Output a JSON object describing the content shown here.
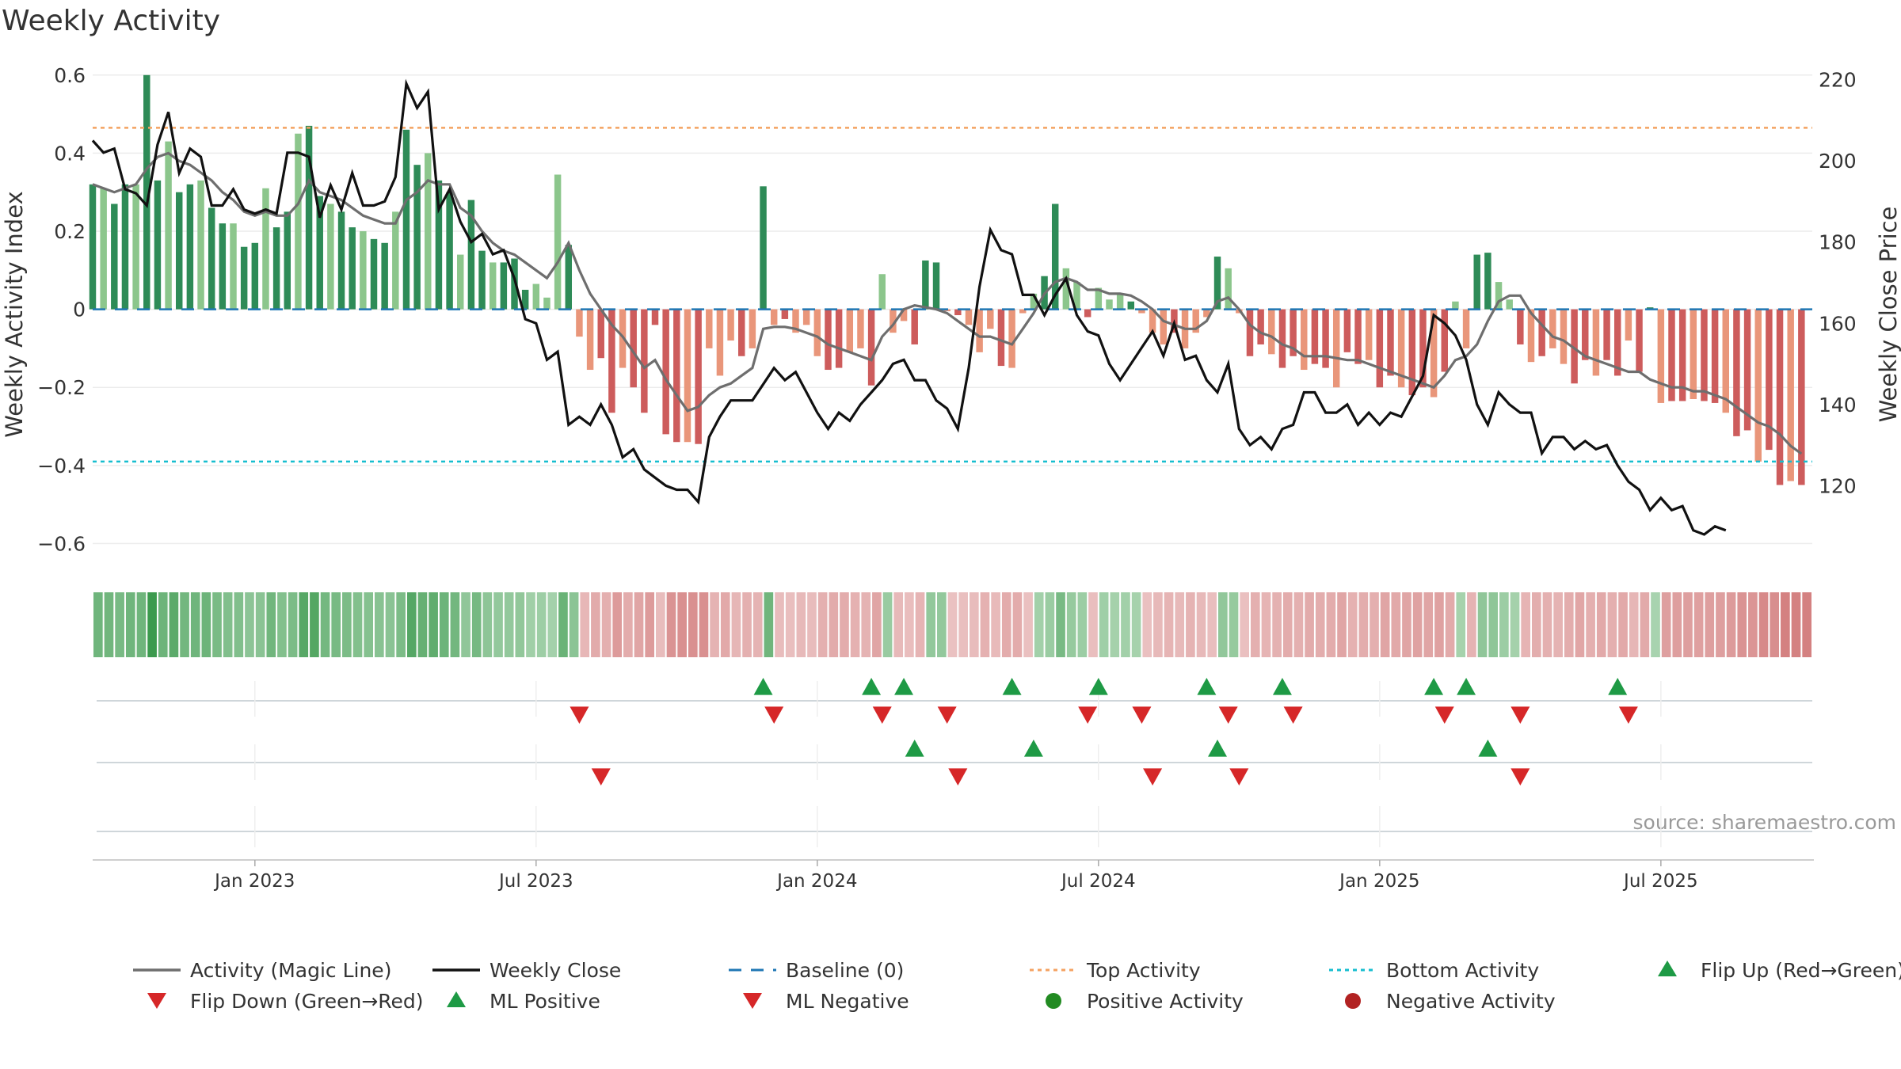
{
  "chart_data": {
    "type": "bar",
    "title": "Weekly Activity",
    "ylabel": "Weekly Activity Index",
    "y2label": "Weekly Close Price",
    "ylim": [
      -0.66,
      0.63
    ],
    "y2lim": [
      100,
      224
    ],
    "yticks": [
      -0.6,
      -0.4,
      -0.2,
      0,
      0.2,
      0.4,
      0.6
    ],
    "y2ticks": [
      120,
      140,
      160,
      180,
      200,
      220
    ],
    "xlim_weeks": [
      0,
      159
    ],
    "xticks": [
      {
        "label": "Jan 2023",
        "week": 15
      },
      {
        "label": "Jul 2023",
        "week": 41
      },
      {
        "label": "Jan 2024",
        "week": 67
      },
      {
        "label": "Jul 2024",
        "week": 93
      },
      {
        "label": "Jan 2025",
        "week": 119
      },
      {
        "label": "Jul 2025",
        "week": 145
      }
    ],
    "top_activity": 0.465,
    "bottom_activity": -0.39,
    "activity_index": [
      0.32,
      0.31,
      0.27,
      0.32,
      0.32,
      0.6,
      0.33,
      0.43,
      0.3,
      0.32,
      0.33,
      0.26,
      0.22,
      0.22,
      0.16,
      0.17,
      0.31,
      0.21,
      0.25,
      0.45,
      0.47,
      0.29,
      0.27,
      0.25,
      0.21,
      0.2,
      0.18,
      0.17,
      0.25,
      0.46,
      0.37,
      0.4,
      0.33,
      0.3,
      0.14,
      0.28,
      0.15,
      0.12,
      0.12,
      0.13,
      0.05,
      0.065,
      0.03,
      0.345,
      0.165,
      -0.07,
      -0.155,
      -0.125,
      -0.265,
      -0.15,
      -0.2,
      -0.265,
      -0.04,
      -0.32,
      -0.34,
      -0.34,
      -0.345,
      -0.1,
      -0.17,
      -0.08,
      -0.12,
      -0.1,
      0.315,
      -0.04,
      -0.025,
      -0.06,
      -0.04,
      -0.12,
      -0.155,
      -0.15,
      -0.11,
      -0.1,
      -0.195,
      0.09,
      -0.06,
      -0.03,
      -0.09,
      0.125,
      0.12,
      -0.005,
      -0.015,
      -0.04,
      -0.11,
      -0.05,
      -0.145,
      -0.15,
      -0.01,
      0.04,
      0.085,
      0.27,
      0.105,
      0.07,
      -0.02,
      0.055,
      0.025,
      0.04,
      0.02,
      -0.01,
      -0.06,
      -0.09,
      -0.06,
      -0.1,
      -0.06,
      -0.02,
      0.135,
      0.105,
      -0.01,
      -0.12,
      -0.09,
      -0.115,
      -0.15,
      -0.12,
      -0.155,
      -0.14,
      -0.15,
      -0.2,
      -0.11,
      -0.14,
      -0.13,
      -0.2,
      -0.17,
      -0.2,
      -0.22,
      -0.2,
      -0.225,
      -0.16,
      0.02,
      -0.1,
      0.14,
      0.145,
      0.07,
      0.025,
      -0.09,
      -0.135,
      -0.12,
      -0.1,
      -0.14,
      -0.19,
      -0.13,
      -0.17,
      -0.13,
      -0.17,
      -0.08,
      -0.16,
      0.005,
      -0.24,
      -0.235,
      -0.235,
      -0.23,
      -0.235,
      -0.24,
      -0.265,
      -0.325,
      -0.31,
      -0.39,
      -0.36,
      -0.45,
      -0.44,
      -0.45
    ],
    "magic_line": [
      0.32,
      0.31,
      0.3,
      0.31,
      0.32,
      0.36,
      0.39,
      0.4,
      0.38,
      0.37,
      0.35,
      0.33,
      0.3,
      0.28,
      0.25,
      0.24,
      0.25,
      0.24,
      0.24,
      0.27,
      0.33,
      0.3,
      0.29,
      0.28,
      0.26,
      0.24,
      0.23,
      0.22,
      0.22,
      0.28,
      0.3,
      0.33,
      0.32,
      0.32,
      0.26,
      0.24,
      0.2,
      0.17,
      0.15,
      0.14,
      0.12,
      0.1,
      0.08,
      0.12,
      0.17,
      0.1,
      0.04,
      0.0,
      -0.04,
      -0.07,
      -0.11,
      -0.15,
      -0.13,
      -0.18,
      -0.22,
      -0.26,
      -0.25,
      -0.22,
      -0.2,
      -0.19,
      -0.17,
      -0.15,
      -0.05,
      -0.045,
      -0.045,
      -0.05,
      -0.06,
      -0.07,
      -0.09,
      -0.1,
      -0.11,
      -0.12,
      -0.13,
      -0.07,
      -0.04,
      0.0,
      0.01,
      0.005,
      0.0,
      -0.01,
      -0.03,
      -0.05,
      -0.07,
      -0.07,
      -0.08,
      -0.09,
      -0.05,
      -0.01,
      0.04,
      0.07,
      0.08,
      0.07,
      0.05,
      0.05,
      0.04,
      0.04,
      0.035,
      0.02,
      0.0,
      -0.03,
      -0.04,
      -0.05,
      -0.05,
      -0.03,
      0.02,
      0.03,
      0.0,
      -0.04,
      -0.06,
      -0.07,
      -0.09,
      -0.1,
      -0.12,
      -0.12,
      -0.12,
      -0.125,
      -0.13,
      -0.13,
      -0.14,
      -0.15,
      -0.16,
      -0.17,
      -0.18,
      -0.19,
      -0.2,
      -0.17,
      -0.13,
      -0.12,
      -0.09,
      -0.03,
      0.02,
      0.035,
      0.035,
      -0.01,
      -0.04,
      -0.07,
      -0.08,
      -0.1,
      -0.12,
      -0.13,
      -0.14,
      -0.15,
      -0.16,
      -0.16,
      -0.18,
      -0.19,
      -0.2,
      -0.2,
      -0.21,
      -0.21,
      -0.22,
      -0.23,
      -0.25,
      -0.27,
      -0.29,
      -0.3,
      -0.32,
      -0.35,
      -0.37
    ],
    "weekly_close": [
      205,
      202,
      203,
      193,
      192,
      189,
      204,
      212,
      197,
      203,
      201,
      189,
      189,
      193,
      188,
      187,
      188,
      187,
      202,
      202,
      201,
      186,
      194,
      188,
      197,
      189,
      189,
      190,
      196,
      219,
      213,
      217,
      188,
      193,
      185,
      180,
      182,
      177,
      178,
      171,
      161,
      160,
      151,
      153,
      135,
      137,
      135,
      140,
      135,
      127,
      129,
      124,
      122,
      120,
      119,
      119,
      116,
      132,
      137,
      141,
      141,
      141,
      145,
      149,
      146,
      148,
      143,
      138,
      134,
      138,
      136,
      140,
      143,
      146,
      150,
      151,
      146,
      146,
      141,
      139,
      134,
      149,
      169,
      183,
      178,
      177,
      167,
      167,
      162,
      167,
      171,
      162,
      158,
      157,
      150,
      146,
      150,
      154,
      158,
      152,
      160,
      151,
      152,
      146,
      143,
      150,
      134,
      130,
      132,
      129,
      134,
      135,
      143,
      143,
      138,
      138,
      140,
      135,
      138,
      135,
      138,
      137,
      142,
      147,
      162,
      160,
      157,
      151,
      140,
      135,
      143,
      140,
      138,
      138,
      128,
      132,
      132,
      129,
      131,
      129,
      130,
      125,
      121,
      119,
      114,
      117,
      114,
      115,
      109,
      108,
      110,
      109
    ],
    "flip_up_weeks": [
      62,
      72,
      75,
      85,
      93,
      103,
      110,
      124,
      127,
      141
    ],
    "flip_down_weeks": [
      45,
      63,
      73,
      79,
      92,
      97,
      105,
      111,
      125,
      132,
      142
    ],
    "ml_positive_weeks": [
      76,
      87,
      104,
      129
    ],
    "ml_negative_weeks": [
      47,
      80,
      98,
      106,
      132
    ],
    "colors": {
      "magic_line": "#6e6e6e",
      "close": "#111111",
      "baseline": "#1f77b4",
      "top_line": "#f4a261",
      "bottom_line": "#17becf",
      "up_marker": "#1e9a45",
      "down_marker": "#d62728",
      "pos_activity": "#228b22",
      "neg_activity": "#b22222",
      "green_strong": "#2e8b57",
      "green_light": "#8cc68c",
      "red_strong": "#cd5c5c",
      "red_light": "#e9967a"
    },
    "legend": [
      {
        "label": "Activity (Magic Line)",
        "kind": "line-gray"
      },
      {
        "label": "Weekly Close",
        "kind": "line-black"
      },
      {
        "label": "Baseline (0)",
        "kind": "dash-blue"
      },
      {
        "label": "Top Activity",
        "kind": "dot-orange"
      },
      {
        "label": "Bottom Activity",
        "kind": "dot-cyan"
      },
      {
        "label": "Flip Up (Red→Green)",
        "kind": "tri-up"
      },
      {
        "label": "Flip Down (Green→Red)",
        "kind": "tri-down"
      },
      {
        "label": "ML Positive",
        "kind": "tri-up"
      },
      {
        "label": "ML Negative",
        "kind": "tri-down"
      },
      {
        "label": "Positive Activity",
        "kind": "dot-green"
      },
      {
        "label": "Negative Activity",
        "kind": "dot-red"
      }
    ],
    "source": "source: sharemaestro.com"
  }
}
